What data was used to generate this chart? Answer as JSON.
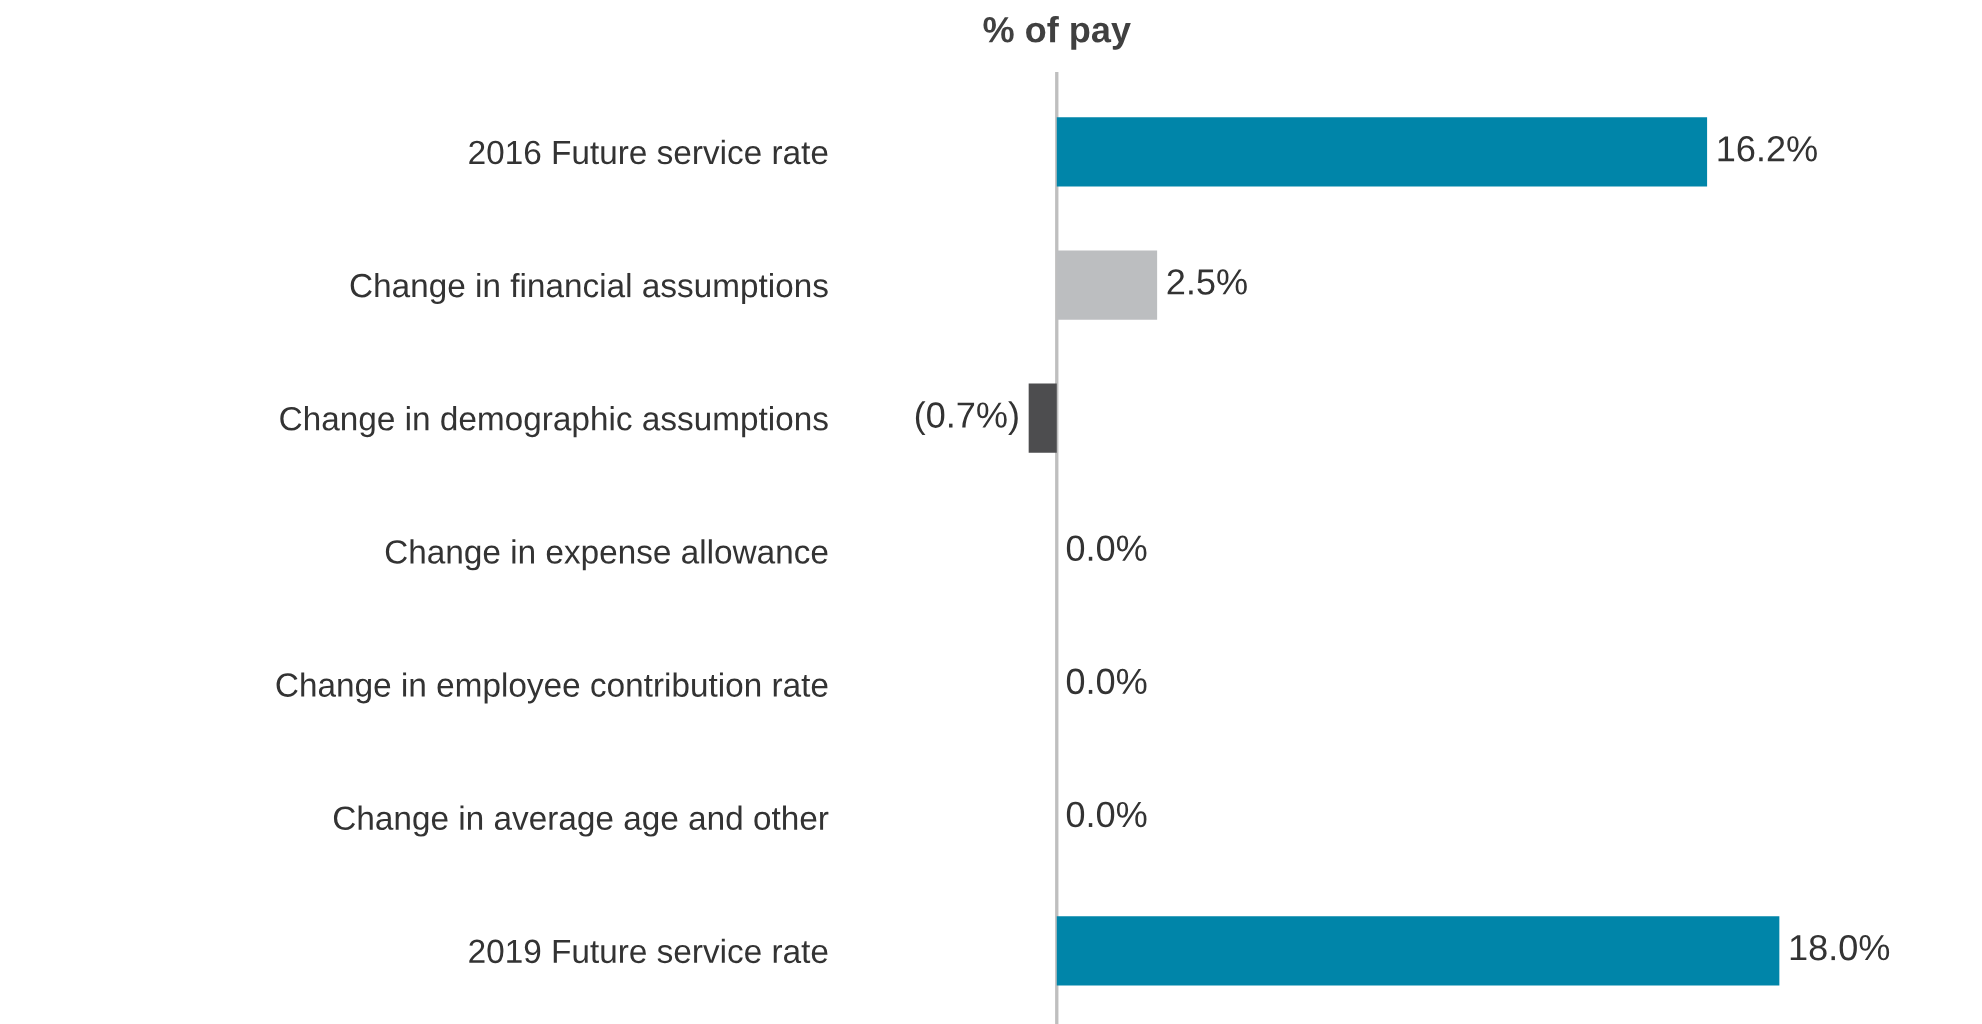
{
  "chart_data": {
    "type": "bar",
    "orientation": "horizontal",
    "title": "% of pay",
    "categories": [
      "2016 Future service rate",
      "Change in financial assumptions",
      "Change in demographic assumptions",
      "Change in expense allowance",
      "Change in employee contribution rate",
      "Change in average age and other",
      "2019 Future service rate"
    ],
    "values": [
      16.2,
      2.5,
      -0.7,
      0.0,
      0.0,
      0.0,
      18.0
    ],
    "colors": [
      "#0085a9",
      "#bcbec0",
      "#4d4d4f",
      "#bcbec0",
      "#bcbec0",
      "#bcbec0",
      "#0085a9"
    ],
    "value_labels": [
      "16.2%",
      "2.5%",
      "(0.7%)",
      "0.0%",
      "0.0%",
      "0.0%",
      "18.0%"
    ],
    "tick_labels": "y",
    "grid": false
  }
}
